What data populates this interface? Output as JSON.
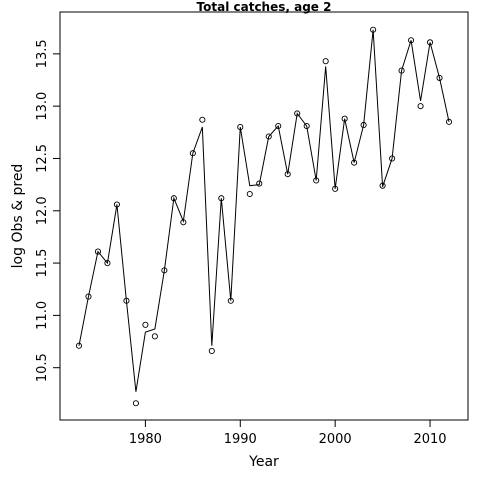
{
  "chart_data": {
    "type": "line",
    "title": "Total catches, age 2",
    "xlabel": "Year",
    "ylabel": "log Obs & pred",
    "xlim": [
      1971,
      2014
    ],
    "ylim": [
      10.0,
      13.9
    ],
    "x_ticks": [
      1980,
      1990,
      2000,
      2010
    ],
    "y_ticks": [
      10.5,
      11.0,
      11.5,
      12.0,
      12.5,
      13.0,
      13.5
    ],
    "x_tick_labels": [
      "1980",
      "1990",
      "2000",
      "2010"
    ],
    "y_tick_labels": [
      "10.5",
      "11.0",
      "11.5",
      "12.0",
      "12.5",
      "13.0",
      "13.5"
    ],
    "grid": false,
    "series": [
      {
        "kind": "points",
        "marker": "open-circle",
        "x": [
          1973,
          1974,
          1975,
          1976,
          1977,
          1978,
          1979,
          1980,
          1981,
          1982,
          1983,
          1984,
          1985,
          1986,
          1987,
          1988,
          1989,
          1990,
          1991,
          1992,
          1993,
          1994,
          1995,
          1996,
          1997,
          1998,
          1999,
          2000,
          2001,
          2002,
          2003,
          2004,
          2005,
          2006,
          2007,
          2008,
          2009,
          2010,
          2011,
          2012
        ],
        "values": [
          10.71,
          11.18,
          11.61,
          11.5,
          12.06,
          11.14,
          10.16,
          10.91,
          10.8,
          11.43,
          12.12,
          11.89,
          12.55,
          12.87,
          10.66,
          12.12,
          11.14,
          12.8,
          12.16,
          12.26,
          12.71,
          12.81,
          12.35,
          12.93,
          12.81,
          12.29,
          13.43,
          12.21,
          12.88,
          12.46,
          12.82,
          13.73,
          12.24,
          12.5,
          13.34,
          13.63,
          13.0,
          13.61,
          13.27,
          12.85
        ]
      },
      {
        "kind": "line",
        "x": [
          1973,
          1974,
          1975,
          1976,
          1977,
          1978,
          1979,
          1980,
          1981,
          1982,
          1983,
          1984,
          1985,
          1986,
          1987,
          1988,
          1989,
          1990,
          1991,
          1992,
          1993,
          1994,
          1995,
          1996,
          1997,
          1998,
          1999,
          2000,
          2001,
          2002,
          2003,
          2004,
          2005,
          2006,
          2007,
          2008,
          2009,
          2010,
          2011,
          2012
        ],
        "values": [
          10.71,
          11.18,
          11.61,
          11.5,
          12.06,
          11.14,
          10.27,
          10.84,
          10.87,
          11.43,
          12.12,
          11.9,
          12.55,
          12.8,
          10.71,
          12.12,
          11.14,
          12.8,
          12.24,
          12.25,
          12.71,
          12.81,
          12.35,
          12.93,
          12.81,
          12.29,
          13.38,
          12.21,
          12.88,
          12.46,
          12.82,
          13.73,
          12.23,
          12.5,
          13.34,
          13.63,
          13.05,
          13.61,
          13.27,
          12.85
        ]
      }
    ]
  }
}
